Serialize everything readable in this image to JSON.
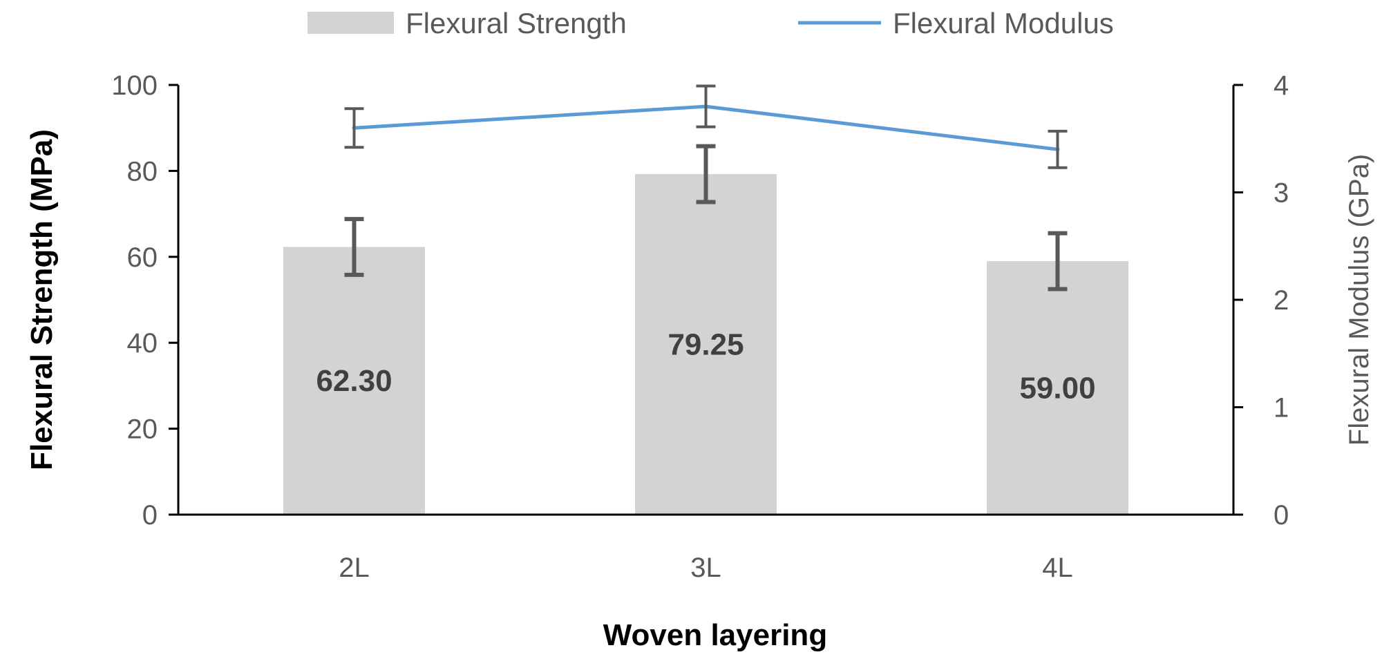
{
  "chart_data": {
    "type": "bar",
    "categories": [
      "2L",
      "3L",
      "4L"
    ],
    "series": [
      {
        "name": "Flexural Strength",
        "kind": "bar",
        "axis": "left",
        "values": [
          62.3,
          79.25,
          59.0
        ],
        "data_labels": [
          "62.30",
          "79.25",
          "59.00"
        ],
        "error": [
          6.5,
          6.5,
          6.5
        ],
        "color": "#d3d3d3"
      },
      {
        "name": "Flexural Modulus",
        "kind": "line",
        "axis": "right",
        "values": [
          3.6,
          3.8,
          3.4
        ],
        "error": [
          0.18,
          0.19,
          0.17
        ],
        "color": "#5b9bd5"
      }
    ],
    "xlabel": "Woven layering",
    "ylabel": "Flexural Strength (MPa)",
    "y2label": "Flexural Modulus (GPa)",
    "ylim": [
      0,
      100
    ],
    "y2lim": [
      0,
      4
    ],
    "yticks": [
      "0",
      "20",
      "40",
      "60",
      "80",
      "100"
    ],
    "y2ticks": [
      "0",
      "1",
      "2",
      "3",
      "4"
    ],
    "legend_position": "top",
    "grid": false,
    "error_bar_color": "#595959"
  }
}
